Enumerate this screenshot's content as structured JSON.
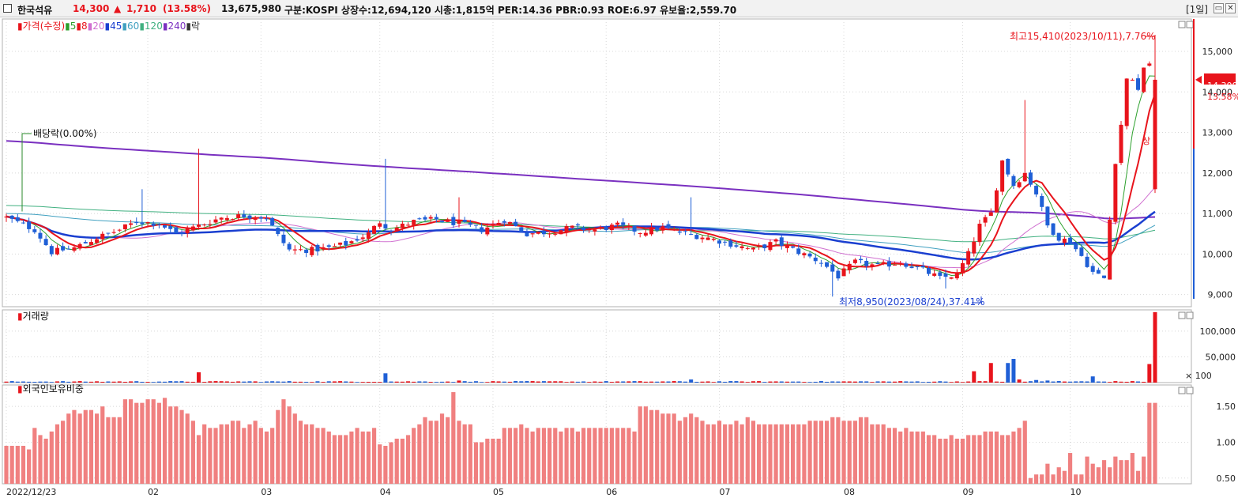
{
  "header": {
    "stock_name": "한국석유",
    "price": "14,300",
    "change_arrow": "▲",
    "change": "1,710",
    "change_pct": "(13.58%)",
    "volume": "13,675,980",
    "info": "구분:KOSPI 상장수:12,694,120 시총:1,815억 PER:14.36 PBR:0.93 ROE:6.97 유보율:2,559.70",
    "period": "[1일]",
    "up_color": "#e8141c"
  },
  "price_panel": {
    "legend": [
      {
        "text": "가격(수정)",
        "color": "#e8141c"
      },
      {
        "text": "5",
        "color": "#2ca02c"
      },
      {
        "text": "8",
        "color": "#e8141c"
      },
      {
        "text": "20",
        "color": "#d070d0"
      },
      {
        "text": "45",
        "color": "#1a3fd0"
      },
      {
        "text": "60",
        "color": "#40a0c0"
      },
      {
        "text": "120",
        "color": "#40b080"
      },
      {
        "text": "240",
        "color": "#7a30c0"
      },
      {
        "text": "락",
        "color": "#333333"
      }
    ],
    "high_annotation": "최고15,410(2023/10/11),7.76%",
    "low_annotation": "최저8,950(2023/08/24),37.41%",
    "dividend_annotation": "배당락(0.00%)",
    "limit_up_label": "상",
    "current_price_label": "14,300",
    "current_pct_label": "13.58%"
  },
  "volume_panel": {
    "title": "거래량",
    "unit_label": "× 100"
  },
  "foreign_panel": {
    "title": "외국인보유비중"
  },
  "chart_data": {
    "type": "candlestick",
    "x_labels": [
      "2022/12/23",
      "02",
      "03",
      "04",
      "05",
      "06",
      "07",
      "08",
      "09",
      "10"
    ],
    "x_label_index": [
      0,
      25,
      45,
      66,
      86,
      106,
      126,
      148,
      169,
      188
    ],
    "price": {
      "ylim": [
        8700,
        15800
      ],
      "yticks": [
        9000,
        10000,
        11000,
        12000,
        13000,
        14000,
        15000
      ],
      "ytick_labels": [
        "9,000",
        "10,000",
        "11,000",
        "12,000",
        "13,000",
        "14,000",
        "15,000"
      ],
      "high": {
        "value": 15410,
        "date": "2023/10/11"
      },
      "low": {
        "value": 8950,
        "date": "2023/08/24"
      },
      "last_close": 14300
    },
    "volume": {
      "ylim": [
        0,
        135000
      ],
      "yticks": [
        50000,
        100000
      ],
      "ytick_labels": [
        "50,000",
        "100,000"
      ],
      "last": 136760
    },
    "foreign_ratio": {
      "ylim": [
        0.42,
        1.8
      ],
      "yticks": [
        0.5,
        1.0,
        1.5
      ],
      "ytick_labels": [
        "0.50",
        "1.00",
        "1.50"
      ],
      "values": [
        0.95,
        0.95,
        0.95,
        0.95,
        0.9,
        1.2,
        1.1,
        1.05,
        1.15,
        1.25,
        1.3,
        1.4,
        1.45,
        1.4,
        1.45,
        1.45,
        1.4,
        1.5,
        1.35,
        1.35,
        1.35,
        1.6,
        1.6,
        1.55,
        1.55,
        1.6,
        1.6,
        1.55,
        1.62,
        1.5,
        1.5,
        1.45,
        1.4,
        1.3,
        1.1,
        1.25,
        1.2,
        1.2,
        1.25,
        1.25,
        1.3,
        1.3,
        1.2,
        1.25,
        1.3,
        1.2,
        1.15,
        1.2,
        1.45,
        1.6,
        1.5,
        1.4,
        1.3,
        1.25,
        1.25,
        1.2,
        1.2,
        1.15,
        1.1,
        1.1,
        1.1,
        1.15,
        1.2,
        1.15,
        1.15,
        1.2,
        0.97,
        0.95,
        1.0,
        1.05,
        1.05,
        1.1,
        1.2,
        1.25,
        1.35,
        1.3,
        1.3,
        1.4,
        1.35,
        1.7,
        1.3,
        1.25,
        1.25,
        1.0,
        1.0,
        1.05,
        1.05,
        1.05,
        1.2,
        1.2,
        1.2,
        1.25,
        1.2,
        1.15,
        1.2,
        1.2,
        1.2,
        1.2,
        1.15,
        1.2,
        1.2,
        1.15,
        1.2,
        1.2,
        1.2,
        1.2,
        1.2,
        1.2,
        1.2,
        1.2,
        1.2,
        1.15,
        1.5,
        1.5,
        1.45,
        1.45,
        1.4,
        1.4,
        1.4,
        1.3,
        1.35,
        1.4,
        1.35,
        1.3,
        1.25,
        1.25,
        1.3,
        1.25,
        1.25,
        1.3,
        1.25,
        1.35,
        1.3,
        1.25,
        1.25,
        1.25,
        1.25,
        1.25,
        1.25,
        1.25,
        1.25,
        1.25,
        1.3,
        1.3,
        1.3,
        1.3,
        1.35,
        1.35,
        1.3,
        1.3,
        1.3,
        1.35,
        1.35,
        1.25,
        1.25,
        1.25,
        1.2,
        1.2,
        1.15,
        1.2,
        1.15,
        1.15,
        1.15,
        1.1,
        1.1,
        1.05,
        1.05,
        1.1,
        1.05,
        1.05,
        1.1,
        1.1,
        1.1,
        1.15,
        1.15,
        1.15,
        1.1,
        1.1,
        1.15,
        1.2,
        1.3,
        0.5,
        0.55,
        0.55,
        0.7,
        0.55,
        0.65,
        0.6,
        0.85,
        0.55,
        0.55,
        0.8,
        0.7,
        0.65,
        0.75,
        0.65,
        0.8,
        0.75,
        0.75,
        0.85,
        0.6,
        0.8,
        1.55,
        1.55
      ]
    }
  }
}
